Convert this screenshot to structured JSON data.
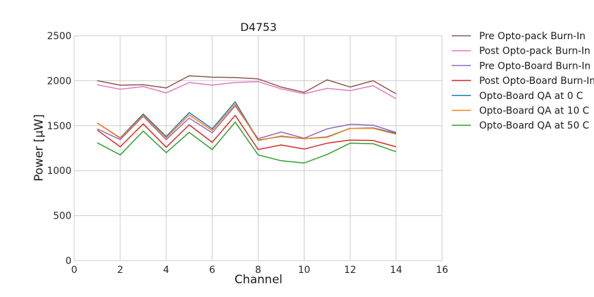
{
  "chart_data": {
    "type": "line",
    "title": "D4753",
    "xlabel": "Channel",
    "ylabel": "Power [μW]",
    "xlim": [
      0,
      16
    ],
    "ylim": [
      0,
      2500
    ],
    "xticks": [
      0,
      2,
      4,
      6,
      8,
      10,
      12,
      14,
      16
    ],
    "yticks": [
      0,
      500,
      1000,
      1500,
      2000,
      2500
    ],
    "grid": true,
    "legend_position": "outside-right-top",
    "x": [
      1,
      2,
      3,
      4,
      5,
      6,
      7,
      8,
      9,
      10,
      11,
      12,
      13,
      14
    ],
    "series": [
      {
        "name": "Pre Opto-pack Burn-In",
        "color": "#8c564b",
        "values": [
          2000,
          1950,
          1955,
          1920,
          2055,
          2040,
          2035,
          2020,
          1930,
          1870,
          2010,
          1930,
          2000,
          1855
        ]
      },
      {
        "name": "Post Opto-pack Burn-In",
        "color": "#e377c2",
        "values": [
          1955,
          1905,
          1935,
          1865,
          1980,
          1950,
          1980,
          1990,
          1910,
          1855,
          1915,
          1890,
          1945,
          1800
        ]
      },
      {
        "name": "Pre Opto-Board Burn-In",
        "color": "#9467bd",
        "values": [
          1465,
          1345,
          1605,
          1345,
          1585,
          1420,
          1720,
          1355,
          1430,
          1360,
          1465,
          1515,
          1505,
          1425
        ]
      },
      {
        "name": "Post Opto-Board Burn-In",
        "color": "#d62728",
        "values": [
          1450,
          1265,
          1520,
          1260,
          1510,
          1315,
          1615,
          1235,
          1285,
          1240,
          1305,
          1340,
          1335,
          1265
        ]
      },
      {
        "name": "Opto-Board QA at 0 C",
        "color": "#1f77b4",
        "values": [
          1530,
          1365,
          1630,
          1380,
          1645,
          1465,
          1765,
          1340,
          1380,
          1355,
          1375,
          1470,
          1475,
          1415
        ]
      },
      {
        "name": "Opto-Board QA at 10 C",
        "color": "#ff7f0e",
        "values": [
          1530,
          1360,
          1615,
          1365,
          1620,
          1445,
          1740,
          1335,
          1385,
          1355,
          1370,
          1470,
          1470,
          1405
        ]
      },
      {
        "name": "Opto-Board QA at 50 C",
        "color": "#2ca02c",
        "values": [
          1310,
          1175,
          1440,
          1200,
          1425,
          1235,
          1540,
          1175,
          1110,
          1085,
          1180,
          1305,
          1300,
          1210
        ]
      }
    ]
  }
}
